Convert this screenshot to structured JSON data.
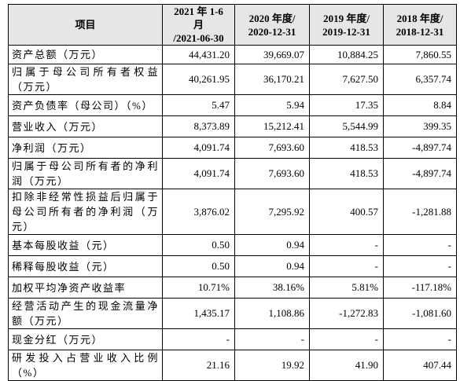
{
  "table": {
    "header": [
      [
        "项目"
      ],
      [
        "2021 年 1-6 月",
        "/2021-06-30"
      ],
      [
        "2020 年度/",
        "2020-12-31"
      ],
      [
        "2019 年度/",
        "2019-12-31"
      ],
      [
        "2018 年度/",
        "2018-12-31"
      ]
    ],
    "rows": [
      [
        "资产总额（万元）",
        "44,431.20",
        "39,669.07",
        "10,884.25",
        "7,860.55"
      ],
      [
        "归属于母公司所有者权益（万元）",
        "40,261.95",
        "36,170.21",
        "7,627.50",
        "6,357.74"
      ],
      [
        "资产负债率（母公司）（%）",
        "5.47",
        "5.94",
        "17.35",
        "8.84"
      ],
      [
        "营业收入（万元）",
        "8,373.89",
        "15,212.41",
        "5,544.99",
        "399.35"
      ],
      [
        "净利润（万元）",
        "4,091.74",
        "7,693.60",
        "418.53",
        "-4,897.74"
      ],
      [
        "归属于母公司所有者的净利润（万元）",
        "4,091.74",
        "7,693.60",
        "418.53",
        "-4,897.74"
      ],
      [
        "扣除非经常性损益后归属于母公司所有者的净利润（万元）",
        "3,876.02",
        "7,295.92",
        "400.57",
        "-1,281.88"
      ],
      [
        "基本每股收益（元）",
        "0.50",
        "0.94",
        "-",
        "-"
      ],
      [
        "稀释每股收益（元）",
        "0.50",
        "0.94",
        "-",
        "-"
      ],
      [
        "加权平均净资产收益率",
        "10.71%",
        "38.16%",
        "5.81%",
        "-117.18%"
      ],
      [
        "经营活动产生的现金流量净额（万元）",
        "1,435.17",
        "1,108.86",
        "-1,272.83",
        "-1,081.60"
      ],
      [
        "现金分红（万元）",
        "-",
        "-",
        "-",
        "-"
      ],
      [
        "研发投入占营业收入比例（%）",
        "21.16",
        "19.92",
        "41.90",
        "407.44"
      ]
    ]
  }
}
